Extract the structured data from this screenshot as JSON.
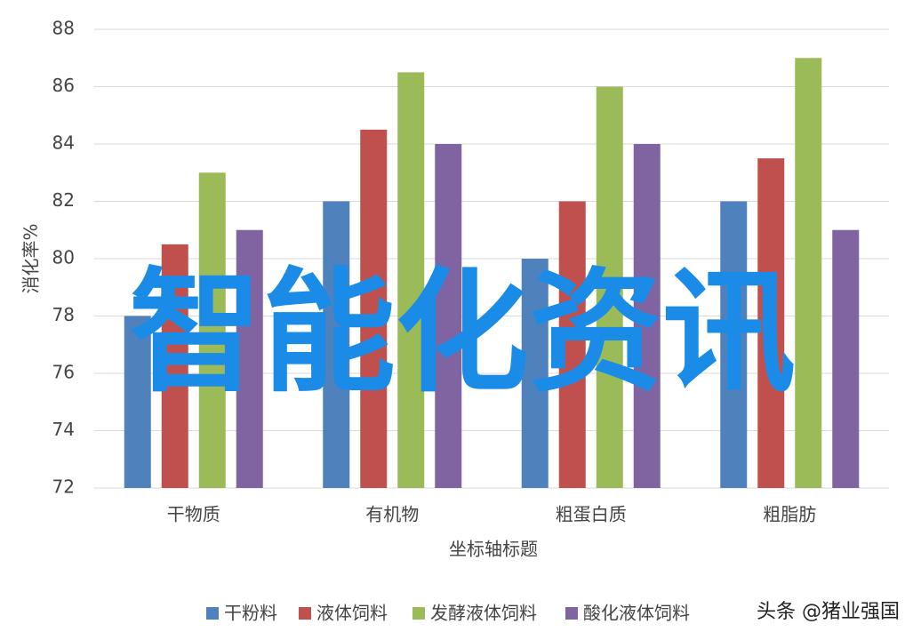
{
  "chart_data": {
    "type": "bar",
    "y_label": "消化率%",
    "x_label": "坐标轴标题",
    "categories": [
      "干物质",
      "有机物",
      "粗蛋白质",
      "粗脂肪"
    ],
    "series": [
      {
        "name": "干粉料",
        "color": "#4f81bd",
        "values": [
          78,
          82,
          80,
          82
        ]
      },
      {
        "name": "液体饲料",
        "color": "#c0504d",
        "values": [
          80.5,
          84.5,
          82,
          83.5
        ]
      },
      {
        "name": "发酵液体饲料",
        "color": "#9bbb59",
        "values": [
          83,
          86.5,
          86,
          87
        ]
      },
      {
        "name": "酸化液体饲料",
        "color": "#8064a2",
        "values": [
          81,
          84,
          84,
          81
        ]
      }
    ],
    "ylim": [
      72,
      88
    ],
    "yticks": [
      72,
      74,
      76,
      78,
      80,
      82,
      84,
      86,
      88
    ],
    "grid": true,
    "watermark": "智能化资讯",
    "source": "头条 @猪业强国"
  }
}
